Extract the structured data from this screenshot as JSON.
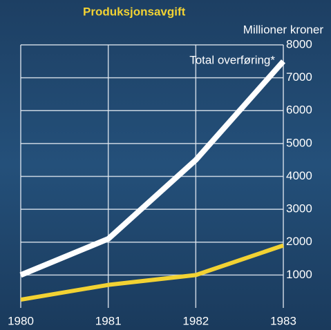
{
  "chart_data": {
    "type": "line",
    "ylabel": "Millioner kroner",
    "x": [
      1980,
      1981,
      1982,
      1983
    ],
    "xlim": [
      1980,
      1983
    ],
    "xticks": [
      1980,
      1981,
      1982,
      1983
    ],
    "ylim": [
      0,
      8000
    ],
    "yticks": [
      1000,
      2000,
      3000,
      4000,
      5000,
      6000,
      7000,
      8000
    ],
    "grid": true,
    "series": [
      {
        "name": "Total overføring*",
        "color": "#ffffff",
        "values": [
          1000,
          2100,
          4500,
          7500
        ]
      },
      {
        "name": "Produksjonsavgift",
        "color": "#f2d233",
        "values": [
          250,
          700,
          1000,
          1900
        ]
      }
    ]
  }
}
